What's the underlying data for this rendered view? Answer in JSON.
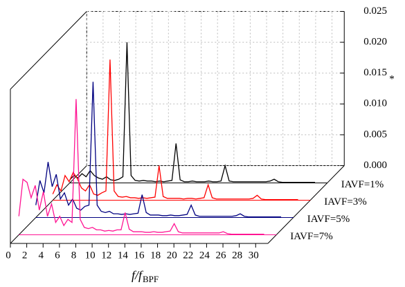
{
  "chart_data": {
    "type": "waterfall",
    "xlabel": "f/f",
    "xlabel_sub": "BPF",
    "zlabel": "*",
    "xlim": [
      0,
      31.5
    ],
    "xticks": [
      0,
      2,
      4,
      6,
      8,
      10,
      12,
      14,
      16,
      18,
      20,
      22,
      24,
      26,
      28,
      30
    ],
    "zlim": [
      0,
      0.025
    ],
    "zticks": [
      {
        "value": 0,
        "label": "0.000"
      },
      0.005,
      {
        "value": 0.01,
        "label": "0.010"
      },
      0.015,
      {
        "value": 0.02,
        "label": "0.020"
      },
      0.025
    ],
    "grid": true,
    "x": [
      0,
      0.5,
      1,
      1.5,
      2,
      2.5,
      3,
      3.5,
      4,
      4.5,
      5,
      5.5,
      6,
      6.5,
      7,
      7.5,
      8,
      8.5,
      9,
      9.5,
      10,
      10.5,
      11,
      11.5,
      12,
      12.5,
      13,
      13.5,
      14,
      14.5,
      15,
      15.5,
      16,
      16.5,
      17,
      17.5,
      18,
      18.5,
      19,
      19.5,
      20,
      20.5,
      21,
      21.5,
      22,
      22.5,
      23,
      23.5,
      24,
      24.5,
      25,
      25.5,
      26,
      26.5,
      27,
      27.5,
      28,
      28.5,
      29,
      29.5,
      30
    ],
    "series": [
      {
        "name": "IAVF=1%",
        "color": "#000000",
        "values": [
          0.0005,
          0.0012,
          0.0008,
          0.0015,
          0.001,
          0.002,
          0.0012,
          0.0008,
          0.0006,
          0.001,
          0.0005,
          0.0004,
          0.0006,
          0.001,
          0.0228,
          0.0012,
          0.0004,
          0.0003,
          0.0004,
          0.0003,
          0.0003,
          0.0002,
          0.0003,
          0.0002,
          0.0003,
          0.0004,
          0.0064,
          0.0005,
          0.0002,
          0.0002,
          0.0003,
          0.0002,
          0.0002,
          0.0002,
          0.0003,
          0.0002,
          0.0002,
          0.0003,
          0.0028,
          0.0003,
          0.0002,
          0.0002,
          0.0002,
          0.0002,
          0.0002,
          0.0002,
          0.0002,
          0.0002,
          0.0002,
          0.0003,
          0.0006,
          0.0002,
          0.0001,
          0.0001,
          0.0001,
          0.0001,
          0.0001,
          0.0001,
          0.0001,
          0.0001,
          0.0001
        ]
      },
      {
        "name": "IAVF=3%",
        "color": "#ff0000",
        "values": [
          0.001,
          0.0025,
          0.0015,
          0.004,
          0.003,
          0.0045,
          0.0035,
          0.002,
          0.0015,
          0.0025,
          0.001,
          0.0008,
          0.0012,
          0.0015,
          0.0228,
          0.0015,
          0.0006,
          0.0005,
          0.0006,
          0.0004,
          0.0004,
          0.0003,
          0.0004,
          0.0003,
          0.0004,
          0.0005,
          0.0056,
          0.0006,
          0.0003,
          0.0003,
          0.0003,
          0.0003,
          0.0002,
          0.0003,
          0.0003,
          0.0002,
          0.0003,
          0.0004,
          0.0025,
          0.0004,
          0.0002,
          0.0002,
          0.0002,
          0.0002,
          0.0002,
          0.0002,
          0.0002,
          0.0002,
          0.0002,
          0.0003,
          0.0008,
          0.0002,
          0.0001,
          0.0001,
          0.0001,
          0.0001,
          0.0001,
          0.0001,
          0.0001,
          0.0001,
          0.0001
        ]
      },
      {
        "name": "IAVF=5%",
        "color": "#000080",
        "values": [
          0.002,
          0.006,
          0.004,
          0.009,
          0.005,
          0.007,
          0.003,
          0.004,
          0.002,
          0.003,
          0.0015,
          0.0012,
          0.0018,
          0.002,
          0.022,
          0.002,
          0.001,
          0.0008,
          0.001,
          0.0006,
          0.0006,
          0.0005,
          0.0006,
          0.0005,
          0.0006,
          0.0007,
          0.0037,
          0.0008,
          0.0004,
          0.0004,
          0.0004,
          0.0003,
          0.0003,
          0.0004,
          0.0003,
          0.0003,
          0.0004,
          0.0005,
          0.002,
          0.0004,
          0.0002,
          0.0002,
          0.0002,
          0.0002,
          0.0002,
          0.0002,
          0.0002,
          0.0002,
          0.0002,
          0.0003,
          0.0006,
          0.0002,
          0.0001,
          0.0001,
          0.0001,
          0.0001,
          0.0001,
          0.0001,
          0.0001,
          0.0001,
          0.0001
        ]
      },
      {
        "name": "IAVF=7%",
        "color": "#ff1493",
        "values": [
          0.003,
          0.009,
          0.0085,
          0.006,
          0.008,
          0.004,
          0.007,
          0.003,
          0.005,
          0.002,
          0.003,
          0.0015,
          0.0025,
          0.002,
          0.022,
          0.0025,
          0.0012,
          0.001,
          0.0012,
          0.0008,
          0.0008,
          0.0006,
          0.0007,
          0.0006,
          0.0008,
          0.0008,
          0.0036,
          0.0009,
          0.0005,
          0.0005,
          0.0005,
          0.0004,
          0.0004,
          0.0005,
          0.0004,
          0.0004,
          0.0005,
          0.0006,
          0.0018,
          0.0005,
          0.0003,
          0.0003,
          0.0003,
          0.0003,
          0.0003,
          0.0003,
          0.0003,
          0.0003,
          0.0003,
          0.0003,
          0.0005,
          0.0002,
          0.0001,
          0.0001,
          0.0001,
          0.0001,
          0.0001,
          0.0001,
          0.0001,
          0.0001,
          0.0001
        ]
      }
    ]
  }
}
